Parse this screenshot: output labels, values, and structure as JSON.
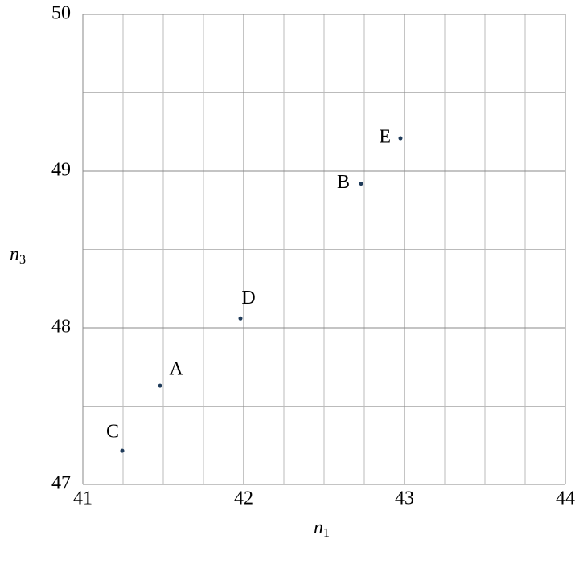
{
  "chart_data": {
    "type": "scatter",
    "xlabel": {
      "base": "n",
      "sub": "1"
    },
    "ylabel": {
      "base": "n",
      "sub": "3"
    },
    "x": [
      41.48,
      42.73,
      41.245,
      41.98,
      42.975
    ],
    "values": [
      47.63,
      48.92,
      47.215,
      48.06,
      49.21
    ],
    "point_labels": [
      "A",
      "B",
      "C",
      "D",
      "E"
    ],
    "color": "#1f3b5a",
    "xlim": [
      41,
      44
    ],
    "ylim": [
      47,
      50
    ],
    "xticks": [
      41,
      42,
      43,
      44
    ],
    "yticks": [
      47,
      48,
      49,
      50
    ],
    "xminor": [
      41.25,
      41.5,
      41.75,
      42.25,
      42.5,
      42.75,
      43.25,
      43.5,
      43.75
    ],
    "yminor": [
      47.5,
      48.5,
      49.5
    ],
    "grid": true
  }
}
